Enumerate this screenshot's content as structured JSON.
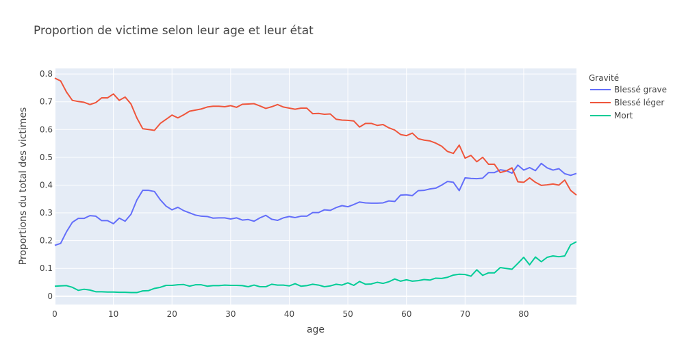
{
  "chart_data": {
    "type": "line",
    "title": "Proportion de victime selon leur age et leur état",
    "xlabel": "age",
    "ylabel": "Proportions du total des victimes",
    "xlim": [
      0,
      89
    ],
    "ylim": [
      -0.03,
      0.82
    ],
    "xticks": [
      0,
      10,
      20,
      30,
      40,
      50,
      60,
      70,
      80
    ],
    "yticks": [
      0,
      0.1,
      0.2,
      0.3,
      0.4,
      0.5,
      0.6,
      0.7,
      0.8
    ],
    "ytick_labels": [
      "0",
      "0.1",
      "0.2",
      "0.3",
      "0.4",
      "0.5",
      "0.6",
      "0.7",
      "0.8"
    ],
    "grid": true,
    "legend": {
      "title": "Gravité",
      "position": "right"
    },
    "x": [
      0,
      1,
      2,
      3,
      4,
      5,
      6,
      7,
      8,
      9,
      10,
      11,
      12,
      13,
      14,
      15,
      16,
      17,
      18,
      19,
      20,
      21,
      22,
      23,
      24,
      25,
      26,
      27,
      28,
      29,
      30,
      31,
      32,
      33,
      34,
      35,
      36,
      37,
      38,
      39,
      40,
      41,
      42,
      43,
      44,
      45,
      46,
      47,
      48,
      49,
      50,
      51,
      52,
      53,
      54,
      55,
      56,
      57,
      58,
      59,
      60,
      61,
      62,
      63,
      64,
      65,
      66,
      67,
      68,
      69,
      70,
      71,
      72,
      73,
      74,
      75,
      76,
      77,
      78,
      79,
      80,
      81,
      82,
      83,
      84,
      85,
      86,
      87,
      88,
      89
    ],
    "series": [
      {
        "name": "Blessé grave",
        "color": "#636efa",
        "values": [
          0.183,
          0.19,
          0.232,
          0.266,
          0.28,
          0.28,
          0.29,
          0.288,
          0.272,
          0.272,
          0.261,
          0.281,
          0.27,
          0.295,
          0.346,
          0.381,
          0.381,
          0.377,
          0.347,
          0.324,
          0.311,
          0.32,
          0.308,
          0.3,
          0.292,
          0.288,
          0.287,
          0.281,
          0.282,
          0.282,
          0.278,
          0.282,
          0.274,
          0.276,
          0.27,
          0.282,
          0.291,
          0.277,
          0.273,
          0.282,
          0.287,
          0.283,
          0.288,
          0.288,
          0.301,
          0.301,
          0.311,
          0.309,
          0.319,
          0.326,
          0.322,
          0.33,
          0.339,
          0.336,
          0.335,
          0.335,
          0.336,
          0.343,
          0.341,
          0.364,
          0.365,
          0.362,
          0.38,
          0.381,
          0.386,
          0.389,
          0.4,
          0.413,
          0.41,
          0.38,
          0.426,
          0.424,
          0.423,
          0.425,
          0.445,
          0.445,
          0.455,
          0.452,
          0.443,
          0.472,
          0.454,
          0.463,
          0.452,
          0.478,
          0.462,
          0.454,
          0.459,
          0.441,
          0.435,
          0.442
        ]
      },
      {
        "name": "Blessé léger",
        "color": "#ef553b",
        "values": [
          0.785,
          0.775,
          0.735,
          0.705,
          0.701,
          0.698,
          0.69,
          0.697,
          0.714,
          0.714,
          0.728,
          0.705,
          0.717,
          0.692,
          0.642,
          0.603,
          0.6,
          0.597,
          0.622,
          0.637,
          0.652,
          0.642,
          0.653,
          0.666,
          0.67,
          0.674,
          0.681,
          0.684,
          0.684,
          0.682,
          0.686,
          0.68,
          0.691,
          0.692,
          0.693,
          0.685,
          0.676,
          0.682,
          0.69,
          0.681,
          0.677,
          0.673,
          0.677,
          0.677,
          0.657,
          0.658,
          0.655,
          0.656,
          0.637,
          0.634,
          0.633,
          0.631,
          0.609,
          0.622,
          0.622,
          0.615,
          0.618,
          0.606,
          0.598,
          0.582,
          0.578,
          0.587,
          0.567,
          0.562,
          0.559,
          0.551,
          0.54,
          0.521,
          0.514,
          0.544,
          0.497,
          0.507,
          0.484,
          0.5,
          0.475,
          0.475,
          0.445,
          0.451,
          0.462,
          0.412,
          0.41,
          0.426,
          0.41,
          0.399,
          0.401,
          0.404,
          0.4,
          0.418,
          0.381,
          0.364
        ]
      },
      {
        "name": "Mort",
        "color": "#00cc96",
        "values": [
          0.036,
          0.037,
          0.038,
          0.032,
          0.021,
          0.025,
          0.022,
          0.016,
          0.016,
          0.015,
          0.015,
          0.014,
          0.014,
          0.013,
          0.013,
          0.019,
          0.02,
          0.028,
          0.032,
          0.039,
          0.039,
          0.041,
          0.042,
          0.036,
          0.041,
          0.041,
          0.036,
          0.038,
          0.038,
          0.04,
          0.039,
          0.039,
          0.038,
          0.034,
          0.04,
          0.034,
          0.034,
          0.043,
          0.04,
          0.04,
          0.037,
          0.045,
          0.036,
          0.038,
          0.043,
          0.04,
          0.034,
          0.037,
          0.043,
          0.04,
          0.048,
          0.039,
          0.053,
          0.043,
          0.044,
          0.05,
          0.046,
          0.052,
          0.062,
          0.054,
          0.059,
          0.054,
          0.056,
          0.06,
          0.058,
          0.065,
          0.064,
          0.068,
          0.076,
          0.079,
          0.078,
          0.072,
          0.095,
          0.075,
          0.084,
          0.084,
          0.103,
          0.1,
          0.097,
          0.118,
          0.14,
          0.113,
          0.141,
          0.124,
          0.14,
          0.145,
          0.142,
          0.145,
          0.185,
          0.196
        ]
      }
    ]
  }
}
